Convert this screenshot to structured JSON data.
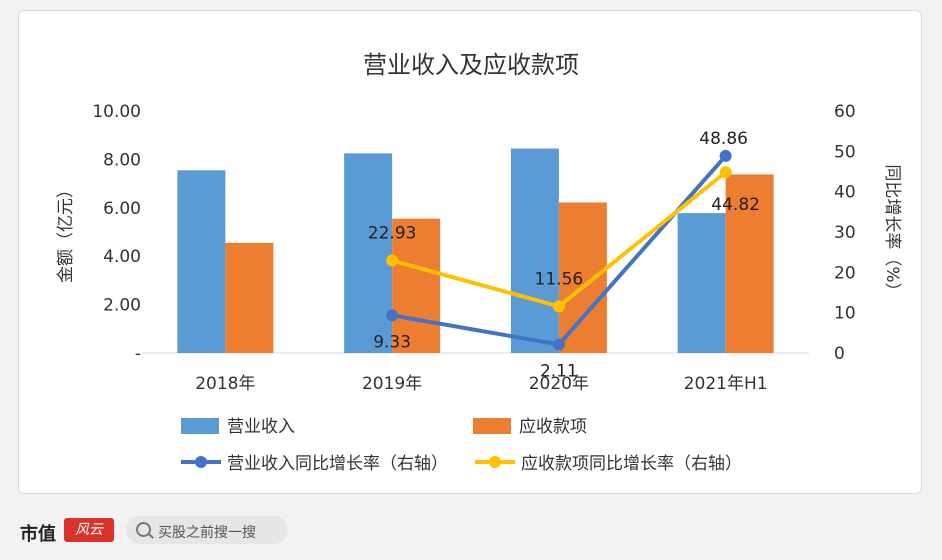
{
  "chart_data": {
    "type": "bar",
    "title": "营业收入及应收款项",
    "categories": [
      "2018年",
      "2019年",
      "2020年",
      "2021年H1"
    ],
    "left_axis": {
      "label": "金额（亿元）",
      "ticks": [
        "-",
        "2.00",
        "4.00",
        "6.00",
        "8.00",
        "10.00"
      ],
      "range": [
        0,
        10
      ]
    },
    "right_axis": {
      "label": "同比增长率（%）",
      "ticks": [
        "0",
        "10",
        "20",
        "30",
        "40",
        "50",
        "60"
      ],
      "range": [
        0,
        60
      ]
    },
    "bar_series": [
      {
        "name": "营业收入",
        "color": "#5b9bd5",
        "values": [
          7.55,
          8.25,
          8.45,
          5.78
        ]
      },
      {
        "name": "应收款项",
        "color": "#ed7d31",
        "values": [
          4.55,
          5.55,
          6.22,
          7.38
        ]
      }
    ],
    "line_series": [
      {
        "name": "营业收入同比增长率（右轴）",
        "color": "#4472c4",
        "x": [
          "2019年",
          "2020年",
          "2021年H1"
        ],
        "values": [
          9.33,
          2.11,
          48.86
        ],
        "labels": [
          "9.33",
          "2.11",
          "48.86"
        ]
      },
      {
        "name": "应收款项同比增长率（右轴）",
        "color": "#ffc000",
        "x": [
          "2019年",
          "2020年",
          "2021年H1"
        ],
        "values": [
          22.93,
          11.56,
          44.82
        ],
        "labels": [
          "22.93",
          "11.56",
          "44.82"
        ]
      }
    ],
    "legend_position": "bottom",
    "grid": false
  },
  "footer": {
    "brand": "市值",
    "brand_mark": "风云",
    "search_placeholder": "买股之前搜一搜"
  }
}
